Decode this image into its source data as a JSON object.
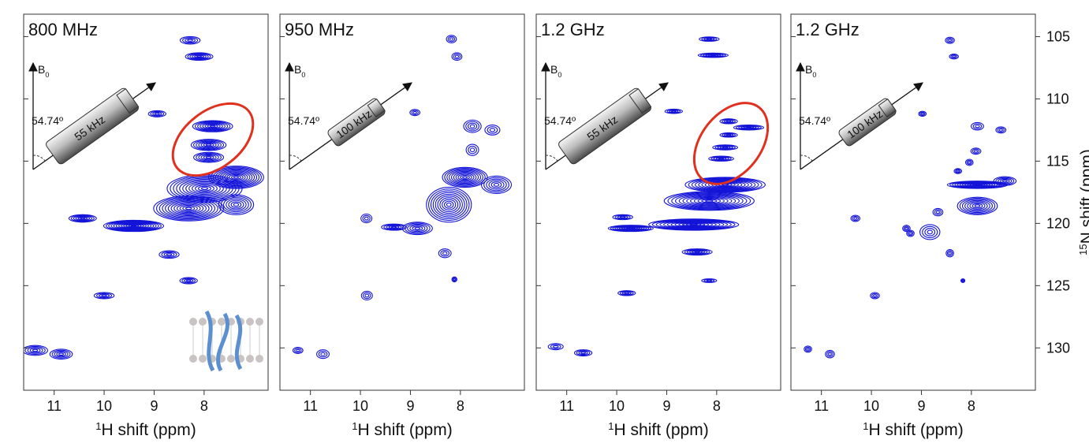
{
  "chart_data": [
    {
      "type": "contour",
      "title": "800 MHz",
      "angle_label": "54.74º",
      "field_label": "B",
      "field_sub": "0",
      "rf_label": "55 kHz",
      "xlabel_sup": "1",
      "xlabel": "H shift (ppm)",
      "xlim": [
        11.61,
        6.72
      ],
      "xticks": [
        11,
        10,
        9,
        8
      ],
      "ylim": [
        103.2,
        133.4
      ],
      "yticks": [
        105,
        110,
        115,
        120,
        125,
        130
      ],
      "peaks": {
        "x": [
          8.28,
          8.1,
          8.94,
          7.83,
          7.91,
          7.91,
          7.36,
          7.99,
          8.31,
          7.36,
          9.41,
          10.43,
          8.7,
          8.31,
          10.0,
          11.38,
          10.86
        ],
        "y": [
          105.3,
          106.6,
          111.2,
          112.2,
          113.7,
          114.7,
          116.3,
          117.2,
          118.8,
          118.5,
          120.2,
          119.6,
          122.5,
          124.6,
          125.8,
          130.2,
          130.5
        ],
        "dx": [
          0.4,
          0.55,
          0.35,
          0.8,
          0.7,
          0.6,
          1.1,
          1.5,
          1.4,
          0.7,
          1.2,
          0.55,
          0.4,
          0.35,
          0.4,
          0.5,
          0.45
        ],
        "dy": [
          0.6,
          0.6,
          0.5,
          0.9,
          0.9,
          0.8,
          1.8,
          2.2,
          2.0,
          1.6,
          0.9,
          0.6,
          0.6,
          0.5,
          0.5,
          0.8,
          0.8
        ]
      }
    },
    {
      "type": "contour",
      "title": "950 MHz",
      "angle_label": "54.74º",
      "field_label": "B",
      "field_sub": "0",
      "rf_label": "100 kHz",
      "xlabel_sup": "1",
      "xlabel": "H shift (ppm)",
      "xlim": [
        11.61,
        6.72
      ],
      "xticks": [
        11,
        10,
        9,
        8
      ],
      "ylim": [
        103.2,
        133.4
      ],
      "yticks": [
        105,
        110,
        115,
        120,
        125,
        130
      ],
      "peaks": {
        "x": [
          8.18,
          8.07,
          8.91,
          7.76,
          7.36,
          7.76,
          7.91,
          8.23,
          7.28,
          8.86,
          9.33,
          9.88,
          8.31,
          8.12,
          9.87,
          10.75,
          11.25
        ],
        "y": [
          105.2,
          106.6,
          111.1,
          112.2,
          112.5,
          114.1,
          116.3,
          118.5,
          116.9,
          120.4,
          120.3,
          119.6,
          122.4,
          124.5,
          125.8,
          130.5,
          130.2
        ],
        "dx": [
          0.2,
          0.2,
          0.2,
          0.35,
          0.3,
          0.25,
          0.9,
          0.9,
          0.6,
          0.6,
          0.5,
          0.22,
          0.25,
          0.1,
          0.22,
          0.25,
          0.2
        ],
        "dy": [
          0.6,
          0.6,
          0.5,
          1.0,
          0.8,
          0.9,
          1.6,
          2.8,
          1.4,
          1.0,
          0.5,
          0.7,
          0.7,
          0.4,
          0.7,
          0.7,
          0.5
        ]
      }
    },
    {
      "type": "contour",
      "title": "1.2 GHz",
      "angle_label": "54.74º",
      "field_label": "B",
      "field_sub": "0",
      "rf_label": "55 kHz",
      "xlabel_sup": "1",
      "xlabel": "H shift (ppm)",
      "xlim": [
        11.61,
        6.72
      ],
      "xticks": [
        11,
        10,
        9,
        8
      ],
      "ylim": [
        103.2,
        133.4
      ],
      "yticks": [
        105,
        110,
        115,
        120,
        125,
        130
      ],
      "peaks": {
        "x": [
          8.15,
          8.07,
          8.86,
          7.76,
          7.36,
          7.76,
          7.83,
          7.91,
          7.83,
          8.15,
          8.46,
          9.72,
          9.88,
          8.39,
          8.15,
          9.8,
          10.67,
          11.22
        ],
        "y": [
          105.2,
          106.5,
          111.0,
          111.8,
          112.3,
          112.9,
          113.9,
          114.8,
          116.9,
          118.2,
          120.1,
          120.4,
          119.5,
          122.3,
          124.6,
          125.6,
          130.4,
          129.9
        ],
        "dx": [
          0.4,
          0.6,
          0.35,
          0.35,
          0.6,
          0.35,
          0.5,
          0.5,
          1.6,
          1.8,
          1.8,
          0.9,
          0.4,
          0.6,
          0.3,
          0.35,
          0.35,
          0.3
        ],
        "dy": [
          0.35,
          0.35,
          0.35,
          0.4,
          0.4,
          0.35,
          0.4,
          0.4,
          1.2,
          1.5,
          0.9,
          0.5,
          0.4,
          0.5,
          0.3,
          0.4,
          0.5,
          0.5
        ]
      }
    },
    {
      "type": "contour",
      "title": "1.2 GHz",
      "angle_label": "54.74º",
      "field_label": "B",
      "field_sub": "0",
      "rf_label": "100 kHz",
      "xlabel_sup": "1",
      "xlabel": "H shift (ppm)",
      "xlim": [
        11.61,
        6.72
      ],
      "xticks": [
        11,
        10,
        9,
        8
      ],
      "ylim": [
        103.2,
        133.4
      ],
      "yticks": [
        105,
        110,
        115,
        120,
        125,
        130
      ],
      "ylabel_sup": "15",
      "ylabel": "N shift (ppm)",
      "peaks": {
        "x": [
          8.43,
          8.35,
          8.98,
          7.88,
          7.41,
          7.91,
          8.04,
          8.27,
          7.88,
          7.88,
          7.33,
          8.67,
          8.83,
          9.3,
          10.32,
          9.22,
          8.43,
          8.17,
          9.93,
          10.83,
          11.27
        ],
        "y": [
          105.3,
          106.6,
          111.2,
          112.2,
          112.5,
          114.2,
          115.1,
          115.8,
          116.9,
          118.6,
          116.6,
          119.1,
          120.7,
          120.4,
          119.6,
          120.8,
          122.4,
          124.6,
          125.8,
          130.5,
          130.1
        ],
        "dx": [
          0.18,
          0.18,
          0.15,
          0.25,
          0.2,
          0.2,
          0.15,
          0.15,
          1.2,
          0.8,
          0.45,
          0.2,
          0.4,
          0.15,
          0.18,
          0.15,
          0.15,
          0.08,
          0.18,
          0.18,
          0.15
        ],
        "dy": [
          0.5,
          0.4,
          0.4,
          0.6,
          0.5,
          0.5,
          0.5,
          0.4,
          0.6,
          1.4,
          0.7,
          0.6,
          1.2,
          0.5,
          0.5,
          0.5,
          0.6,
          0.3,
          0.5,
          0.6,
          0.5
        ]
      }
    }
  ]
}
